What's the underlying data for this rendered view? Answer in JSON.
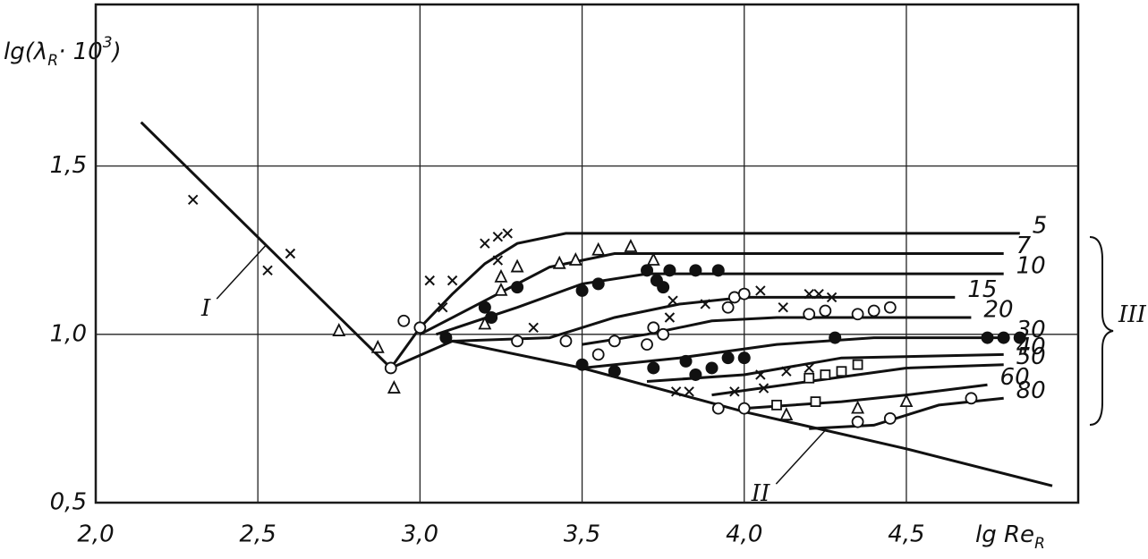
{
  "chart_data": {
    "type": "line",
    "ylabel": {
      "main": "lg(λ",
      "sub": "R",
      "mid": "· 10",
      "sup": "3",
      "end": ")"
    },
    "xlabel": {
      "main": "lg Re",
      "sub": "R"
    },
    "xlim": [
      2.0,
      5.03
    ],
    "ylim": [
      0.5,
      1.98
    ],
    "xticks": [
      {
        "value": 2.0,
        "label": "2,0"
      },
      {
        "value": 2.5,
        "label": "2,5"
      },
      {
        "value": 3.0,
        "label": "3,0"
      },
      {
        "value": 3.5,
        "label": "3,5"
      },
      {
        "value": 4.0,
        "label": "4,0"
      },
      {
        "value": 4.5,
        "label": "4,5"
      }
    ],
    "yticks": [
      {
        "value": 0.5,
        "label": "0,5"
      },
      {
        "value": 1.0,
        "label": "1,0"
      },
      {
        "value": 1.5,
        "label": "1,5"
      }
    ],
    "grid": true,
    "color": "#111111",
    "series": [
      {
        "name": "5",
        "x": [
          2.91,
          3.0,
          3.1,
          3.2,
          3.3,
          3.45,
          3.6,
          4.0,
          4.85
        ],
        "values": [
          0.9,
          1.02,
          1.12,
          1.21,
          1.27,
          1.3,
          1.3,
          1.3,
          1.3
        ]
      },
      {
        "name": "7",
        "x": [
          3.0,
          3.2,
          3.4,
          3.6,
          4.0,
          4.8
        ],
        "values": [
          1.0,
          1.1,
          1.2,
          1.24,
          1.24,
          1.24
        ]
      },
      {
        "name": "10",
        "x": [
          3.05,
          3.3,
          3.5,
          3.7,
          4.0,
          4.8
        ],
        "values": [
          1.0,
          1.08,
          1.15,
          1.18,
          1.18,
          1.18
        ]
      },
      {
        "name": "15",
        "x": [
          3.1,
          3.4,
          3.6,
          3.8,
          4.0,
          4.65
        ],
        "values": [
          0.98,
          0.99,
          1.05,
          1.09,
          1.11,
          1.11
        ]
      },
      {
        "name": "20",
        "x": [
          3.5,
          3.7,
          3.9,
          4.1,
          4.7
        ],
        "values": [
          0.97,
          1.0,
          1.04,
          1.05,
          1.05
        ]
      },
      {
        "name": "30",
        "x": [
          3.5,
          3.8,
          4.1,
          4.4,
          4.8
        ],
        "values": [
          0.9,
          0.93,
          0.97,
          0.99,
          0.99
        ]
      },
      {
        "name": "40",
        "x": [
          3.7,
          4.0,
          4.3,
          4.8
        ],
        "values": [
          0.86,
          0.88,
          0.93,
          0.94
        ]
      },
      {
        "name": "50",
        "x": [
          3.9,
          4.2,
          4.5,
          4.8
        ],
        "values": [
          0.82,
          0.86,
          0.9,
          0.91
        ]
      },
      {
        "name": "60",
        "x": [
          4.0,
          4.3,
          4.5,
          4.75
        ],
        "values": [
          0.78,
          0.8,
          0.82,
          0.85
        ]
      },
      {
        "name": "80",
        "x": [
          4.2,
          4.4,
          4.6,
          4.8
        ],
        "values": [
          0.72,
          0.73,
          0.79,
          0.81
        ]
      }
    ],
    "lines": [
      {
        "label": "I",
        "x": [
          2.14,
          2.91
        ],
        "values": [
          1.63,
          0.9
        ]
      },
      {
        "label": "II",
        "x": [
          2.91,
          3.1,
          3.5,
          4.0,
          4.5,
          4.95
        ],
        "values": [
          0.9,
          0.98,
          0.9,
          0.77,
          0.66,
          0.55
        ]
      }
    ],
    "group_label": "III",
    "points": [
      {
        "marker": "cross",
        "x": [
          2.3,
          2.53,
          2.6,
          3.03,
          3.1,
          3.07,
          3.2,
          3.24,
          3.27,
          3.24,
          3.35,
          3.78,
          3.77,
          3.88,
          4.0,
          4.05,
          4.12,
          4.2,
          4.23,
          4.27,
          4.05,
          4.13,
          4.2,
          3.79,
          3.83,
          3.97,
          4.06
        ],
        "values": [
          1.4,
          1.19,
          1.24,
          1.16,
          1.16,
          1.08,
          1.27,
          1.29,
          1.3,
          1.22,
          1.02,
          1.1,
          1.05,
          1.09,
          1.12,
          1.13,
          1.08,
          1.12,
          1.12,
          1.11,
          0.88,
          0.89,
          0.9,
          0.83,
          0.83,
          0.83,
          0.84
        ]
      },
      {
        "marker": "triangle",
        "x": [
          2.75,
          2.87,
          2.92,
          3.25,
          3.25,
          3.3,
          3.43,
          3.48,
          3.55,
          3.65,
          3.72,
          3.2,
          4.35,
          4.5,
          4.13
        ],
        "values": [
          1.01,
          0.96,
          0.84,
          1.17,
          1.13,
          1.2,
          1.21,
          1.22,
          1.25,
          1.26,
          1.22,
          1.03,
          0.78,
          0.8,
          0.76
        ]
      },
      {
        "marker": "circle",
        "x": [
          2.91,
          2.95,
          3.0,
          3.3,
          3.45,
          3.55,
          3.6,
          3.7,
          3.75,
          3.72,
          3.95,
          3.97,
          4.0,
          4.2,
          4.25,
          4.35,
          4.4,
          4.45,
          3.92,
          4.0,
          4.35,
          4.45,
          4.7
        ],
        "values": [
          0.9,
          1.04,
          1.02,
          0.98,
          0.98,
          0.94,
          0.98,
          0.97,
          1.0,
          1.02,
          1.08,
          1.11,
          1.12,
          1.06,
          1.07,
          1.06,
          1.07,
          1.08,
          0.78,
          0.78,
          0.74,
          0.75,
          0.81
        ]
      },
      {
        "marker": "disc",
        "x": [
          3.3,
          3.2,
          3.22,
          3.5,
          3.55,
          3.7,
          3.77,
          3.85,
          3.92,
          3.73,
          3.75,
          3.08,
          3.5,
          3.6,
          3.72,
          3.82,
          3.85,
          3.9,
          3.95,
          4.0,
          4.28,
          4.75,
          4.8,
          4.85
        ],
        "values": [
          1.14,
          1.08,
          1.05,
          1.13,
          1.15,
          1.19,
          1.19,
          1.19,
          1.19,
          1.16,
          1.14,
          0.99,
          0.91,
          0.89,
          0.9,
          0.92,
          0.88,
          0.9,
          0.93,
          0.93,
          0.99,
          0.99,
          0.99,
          0.99
        ]
      },
      {
        "marker": "square",
        "x": [
          4.2,
          4.25,
          4.3,
          4.35,
          4.22,
          4.1
        ],
        "values": [
          0.87,
          0.88,
          0.89,
          0.91,
          0.8,
          0.79
        ]
      }
    ]
  }
}
